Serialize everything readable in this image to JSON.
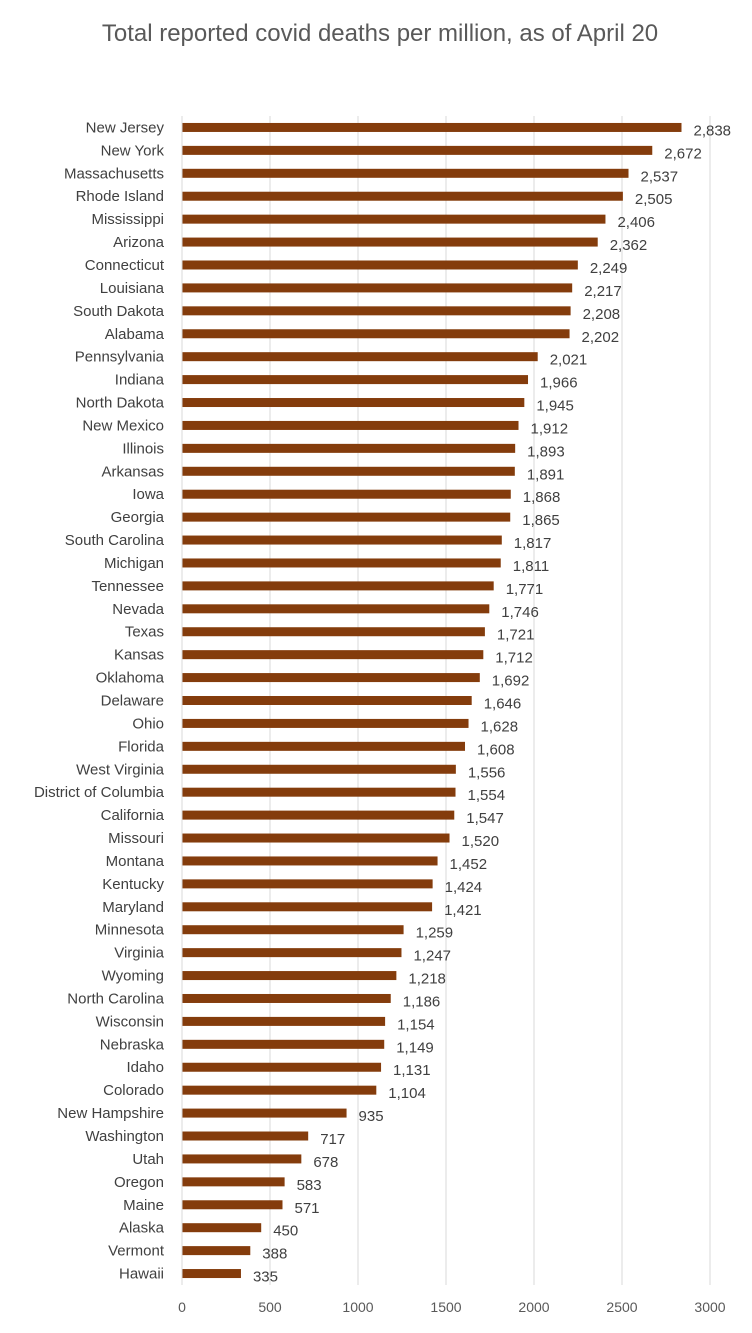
{
  "chart_data": {
    "type": "bar",
    "orientation": "horizontal",
    "title": "Total reported covid deaths per million, as of April 20",
    "xlabel": "",
    "ylabel": "",
    "xlim": [
      0,
      3000
    ],
    "x_ticks": [
      0,
      500,
      1000,
      1500,
      2000,
      2500,
      3000
    ],
    "x_tick_labels": [
      "0",
      "500",
      "1000",
      "1500",
      "2000",
      "2500",
      "3000"
    ],
    "grid": "vertical",
    "legend": "none",
    "bar_color": "#843c0c",
    "categories": [
      "New Jersey",
      "New York",
      "Massachusetts",
      "Rhode Island",
      "Mississippi",
      "Arizona",
      "Connecticut",
      "Louisiana",
      "South Dakota",
      "Alabama",
      "Pennsylvania",
      "Indiana",
      "North Dakota",
      "New Mexico",
      "Illinois",
      "Arkansas",
      "Iowa",
      "Georgia",
      "South Carolina",
      "Michigan",
      "Tennessee",
      "Nevada",
      "Texas",
      "Kansas",
      "Oklahoma",
      "Delaware",
      "Ohio",
      "Florida",
      "West Virginia",
      "District of Columbia",
      "California",
      "Missouri",
      "Montana",
      "Kentucky",
      "Maryland",
      "Minnesota",
      "Virginia",
      "Wyoming",
      "North Carolina",
      "Wisconsin",
      "Nebraska",
      "Idaho",
      "Colorado",
      "New Hampshire",
      "Washington",
      "Utah",
      "Oregon",
      "Maine",
      "Alaska",
      "Vermont",
      "Hawaii"
    ],
    "values": [
      2838,
      2672,
      2537,
      2505,
      2406,
      2362,
      2249,
      2217,
      2208,
      2202,
      2021,
      1966,
      1945,
      1912,
      1893,
      1891,
      1868,
      1865,
      1817,
      1811,
      1771,
      1746,
      1721,
      1712,
      1692,
      1646,
      1628,
      1608,
      1556,
      1554,
      1547,
      1520,
      1452,
      1424,
      1421,
      1259,
      1247,
      1218,
      1186,
      1154,
      1149,
      1131,
      1104,
      935,
      717,
      678,
      583,
      571,
      450,
      388,
      335
    ],
    "value_labels": [
      "2,838",
      "2,672",
      "2,537",
      "2,505",
      "2,406",
      "2,362",
      "2,249",
      "2,217",
      "2,208",
      "2,202",
      "2,021",
      "1,966",
      "1,945",
      "1,912",
      "1,893",
      "1,891",
      "1,868",
      "1,865",
      "1,817",
      "1,811",
      "1,771",
      "1,746",
      "1,721",
      "1,712",
      "1,692",
      "1,646",
      "1,628",
      "1,608",
      "1,556",
      "1,554",
      "1,547",
      "1,520",
      "1,452",
      "1,424",
      "1,421",
      "1,259",
      "1,247",
      "1,218",
      "1,186",
      "1,154",
      "1,149",
      "1,131",
      "1,104",
      "935",
      "717",
      "678",
      "583",
      "571",
      "450",
      "388",
      "335"
    ]
  }
}
